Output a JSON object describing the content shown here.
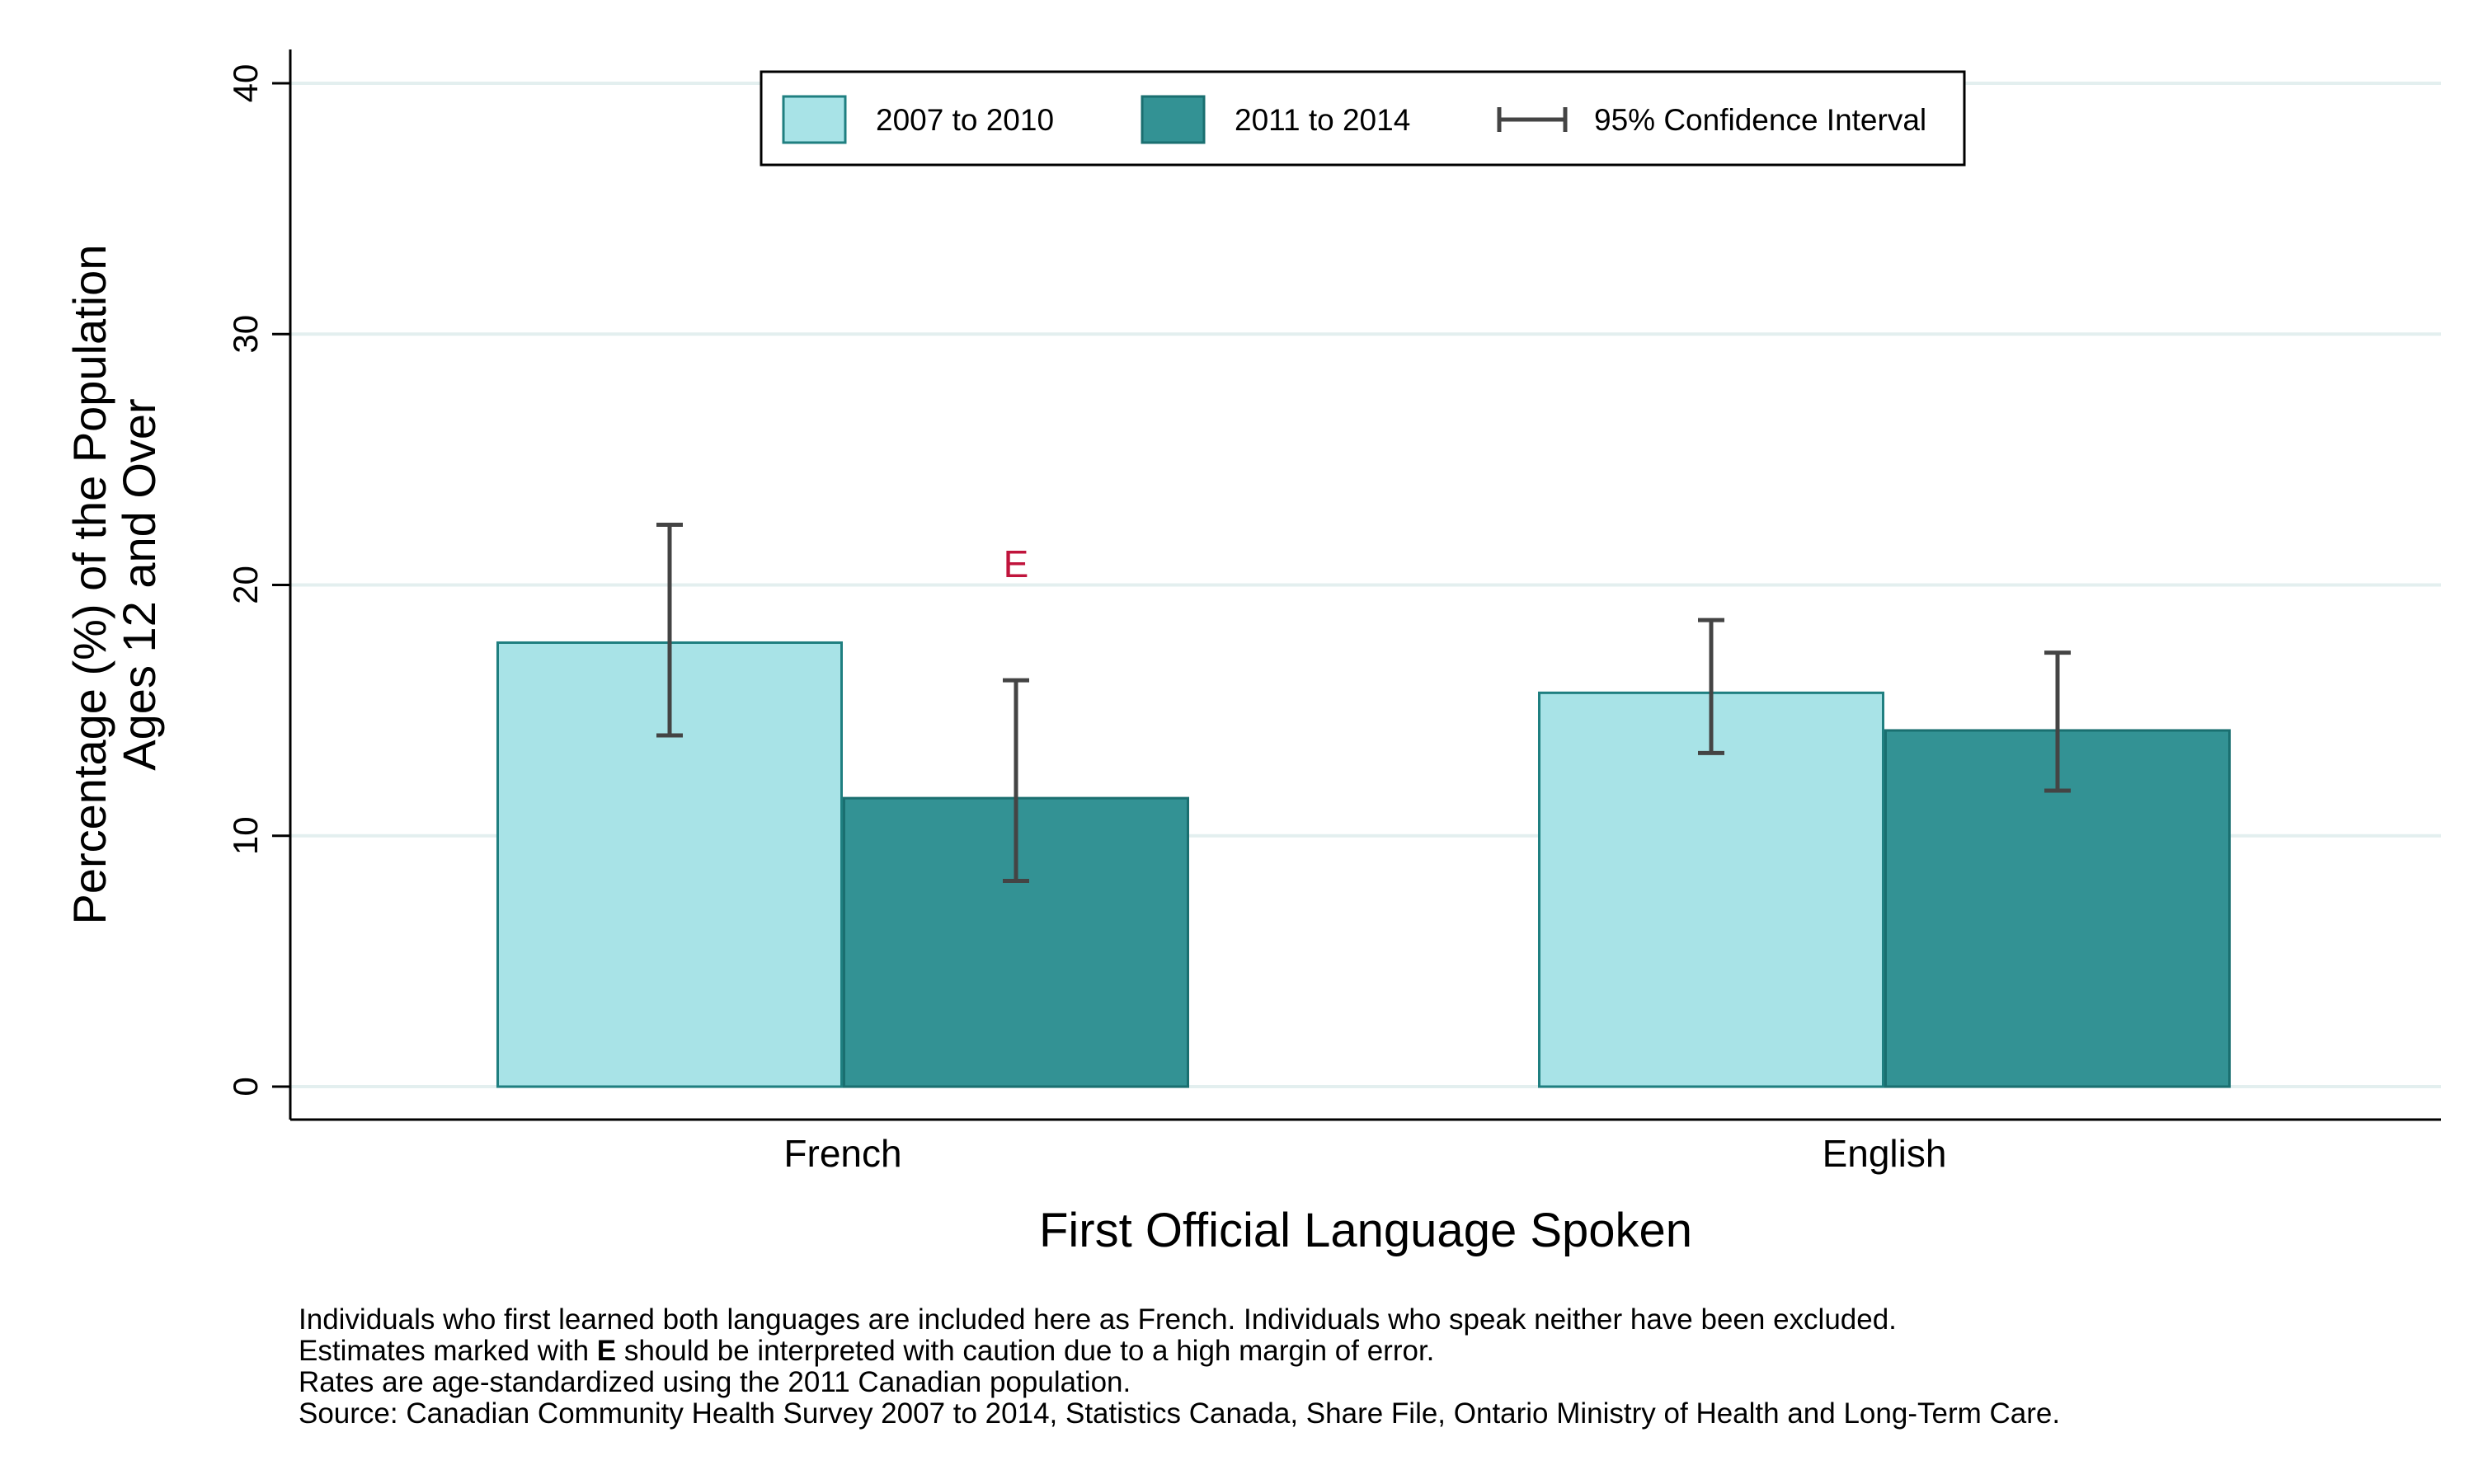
{
  "chart_data": {
    "type": "bar",
    "xlabel": "First Official Language Spoken",
    "ylabel": [
      "Percentage (%) of the Population",
      "Ages 12 and Over"
    ],
    "categories": [
      "French",
      "English"
    ],
    "ylim": [
      0,
      40
    ],
    "yticks": [
      0,
      10,
      20,
      30,
      40
    ],
    "grid": true,
    "legend_position": "top-center",
    "series": [
      {
        "name": "2007 to 2010",
        "color": "#a8e3e7",
        "edge_color": "#1f7f80",
        "values": [
          17.7,
          15.7
        ],
        "ci_low": [
          14.0,
          13.3
        ],
        "ci_high": [
          22.4,
          18.6
        ],
        "flags": [
          "",
          ""
        ]
      },
      {
        "name": "2011 to 2014",
        "color": "#339294",
        "edge_color": "#1a6f70",
        "values": [
          11.5,
          14.2
        ],
        "ci_low": [
          8.2,
          11.8
        ],
        "ci_high": [
          16.2,
          17.3
        ],
        "flags": [
          "E",
          ""
        ]
      }
    ],
    "ci_legend_label": "95% Confidence Interval",
    "flag_color": "#c0143c"
  },
  "notes": {
    "line1": "Individuals who first learned both languages are included here as French.  Individuals who speak neither have been excluded.",
    "line2_pre": "Estimates marked with ",
    "line2_bold": "E",
    "line2_post": " should be interpreted with caution due to a high margin of error.",
    "line3": "Rates are age-standardized using the 2011 Canadian population.",
    "line4": "Source: Canadian Community Health Survey 2007 to 2014, Statistics Canada, Share File, Ontario Ministry of Health and Long-Term Care."
  }
}
